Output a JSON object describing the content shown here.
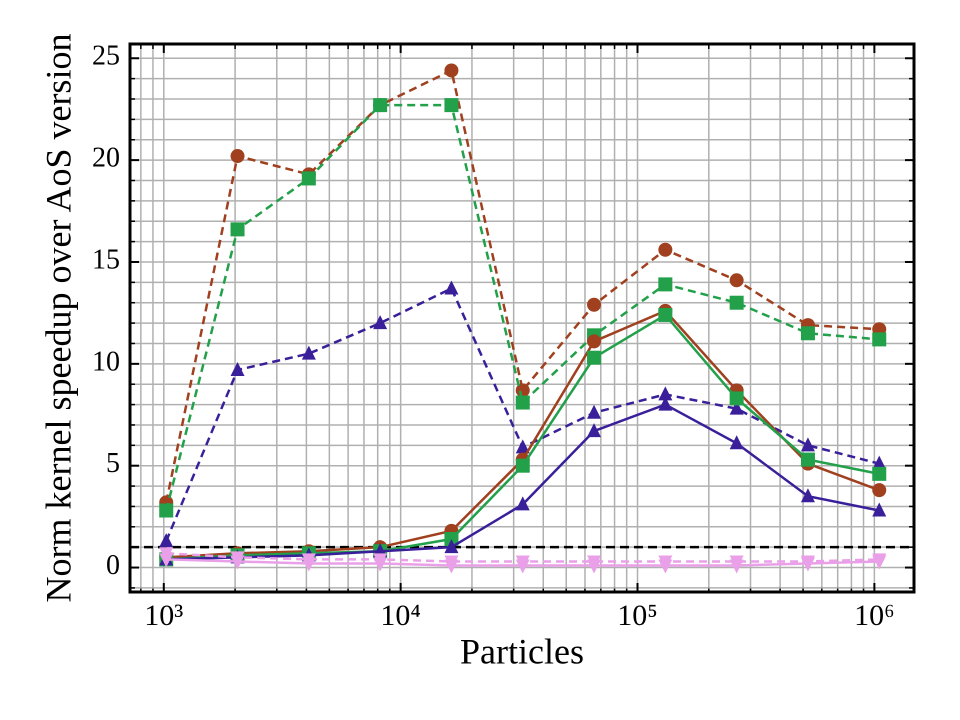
{
  "chart_data": {
    "type": "line",
    "xlabel": "Particles",
    "ylabel": "Norm kernel speedup over AoS version",
    "x": [
      1024,
      2048,
      4096,
      8192,
      16384,
      32768,
      65536,
      131072,
      262144,
      524288,
      1048576
    ],
    "xscale": "log",
    "xlim": [
      720,
      1470000
    ],
    "ylim": [
      -1.2,
      25.7
    ],
    "xticks": [
      {
        "value": 1000,
        "label": "10³"
      },
      {
        "value": 10000,
        "label": "10⁴"
      },
      {
        "value": 100000,
        "label": "10⁵"
      },
      {
        "value": 1000000,
        "label": "10⁶"
      }
    ],
    "xminorticks": [
      800,
      900,
      2000,
      3000,
      4000,
      5000,
      6000,
      7000,
      8000,
      9000,
      20000,
      30000,
      40000,
      50000,
      60000,
      70000,
      80000,
      90000,
      200000,
      300000,
      400000,
      500000,
      600000,
      700000,
      800000,
      900000
    ],
    "yticks": [
      0,
      5,
      10,
      15,
      20,
      25
    ],
    "yminorticks": [
      -1,
      1,
      2,
      3,
      4,
      6,
      7,
      8,
      9,
      11,
      12,
      13,
      14,
      16,
      17,
      18,
      19,
      21,
      22,
      23,
      24
    ],
    "grid": true,
    "hline": 1,
    "series": [
      {
        "color": "#a0401f",
        "marker": "circle",
        "dash": true,
        "values": [
          3.2,
          20.2,
          19.3,
          22.7,
          24.4,
          8.7,
          12.9,
          15.6,
          14.1,
          11.9,
          11.7
        ]
      },
      {
        "color": "#22a04a",
        "marker": "square",
        "dash": true,
        "values": [
          2.8,
          16.6,
          19.1,
          22.7,
          22.7,
          8.1,
          11.4,
          13.9,
          13.0,
          11.5,
          11.2
        ]
      },
      {
        "color": "#3a1f9a",
        "marker": "triangle-up",
        "dash": true,
        "values": [
          1.3,
          9.7,
          10.5,
          12.0,
          13.7,
          5.9,
          7.6,
          8.5,
          7.8,
          6.0,
          5.1
        ]
      },
      {
        "color": "#a0401f",
        "marker": "circle",
        "dash": false,
        "values": [
          0.5,
          0.7,
          0.8,
          1.0,
          1.8,
          5.3,
          11.1,
          12.6,
          8.7,
          5.1,
          3.8
        ]
      },
      {
        "color": "#22a04a",
        "marker": "square",
        "dash": false,
        "values": [
          0.4,
          0.6,
          0.7,
          0.8,
          1.4,
          5.0,
          10.3,
          12.4,
          8.3,
          5.3,
          4.6
        ]
      },
      {
        "color": "#3a1f9a",
        "marker": "triangle-up",
        "dash": false,
        "values": [
          0.4,
          0.5,
          0.6,
          0.8,
          1.0,
          3.1,
          6.7,
          8.0,
          6.1,
          3.5,
          2.8
        ]
      },
      {
        "color": "#e9a0e8",
        "marker": "triangle-down",
        "dash": true,
        "values": [
          0.7,
          0.5,
          0.4,
          0.4,
          0.3,
          0.3,
          0.3,
          0.3,
          0.3,
          0.3,
          0.4
        ]
      },
      {
        "color": "#e9a0e8",
        "marker": "triangle-down",
        "dash": false,
        "values": [
          0.4,
          0.3,
          0.2,
          0.2,
          0.1,
          0.1,
          0.1,
          0.1,
          0.1,
          0.2,
          0.3
        ]
      }
    ]
  }
}
